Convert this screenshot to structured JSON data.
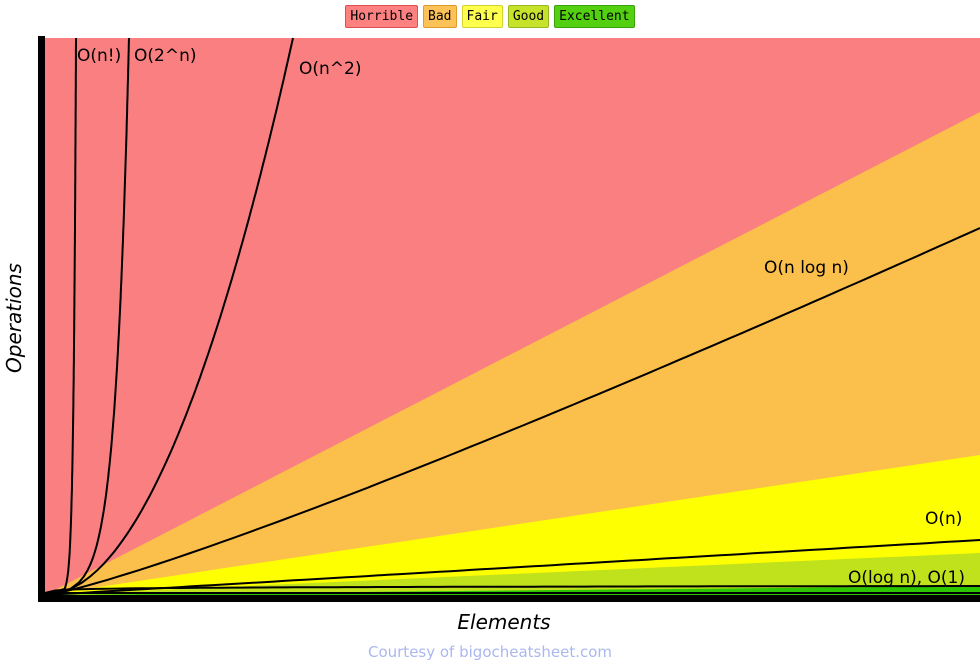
{
  "legend": {
    "items": [
      {
        "label": "Horrible",
        "bg": "#fd8181",
        "border": "#e04f4f"
      },
      {
        "label": "Bad",
        "bg": "#fcc258",
        "border": "#e09b2d"
      },
      {
        "label": "Fair",
        "bg": "#ffff4d",
        "border": "#d3d32e"
      },
      {
        "label": "Good",
        "bg": "#c6e22b",
        "border": "#99b821"
      },
      {
        "label": "Excellent",
        "bg": "#53d010",
        "border": "#3ba00d"
      }
    ]
  },
  "axes": {
    "x_label": "Elements",
    "y_label": "Operations"
  },
  "caption": {
    "text": "Courtesy of bigocheatsheet.com",
    "color": "#abb7ef"
  },
  "chart_data": {
    "type": "line",
    "xlabel": "Elements",
    "ylabel": "Operations",
    "x_ticks": [],
    "y_ticks": [],
    "grid": false,
    "legend_position": "top-center",
    "legend_entries": [
      "Horrible",
      "Bad",
      "Fair",
      "Good",
      "Excellent"
    ],
    "curve_color": "#000000",
    "zones": [
      {
        "name": "Horrible",
        "color": "#f97f81"
      },
      {
        "name": "Bad",
        "color": "#fbbf4c"
      },
      {
        "name": "Fair",
        "color": "#feff00"
      },
      {
        "name": "Good",
        "color": "#bfe21d"
      },
      {
        "name": "Excellent",
        "color": "#2cc500"
      }
    ],
    "series": [
      {
        "id": "factorial",
        "formula": "n!",
        "label": "O(n!)"
      },
      {
        "id": "exponential",
        "formula": "2^n",
        "label": "O(2^n)"
      },
      {
        "id": "quadratic",
        "formula": "n^2",
        "label": "O(n^2)"
      },
      {
        "id": "nlogn",
        "formula": "n log n",
        "label": "O(n log n)"
      },
      {
        "id": "linear",
        "formula": "n",
        "label": "O(n)"
      },
      {
        "id": "logarithmic",
        "formula": "log n",
        "label": "O(log n)"
      },
      {
        "id": "constant",
        "formula": "1",
        "label": "O(1)"
      }
    ],
    "annotations": [
      {
        "id": "factorial",
        "text": "O(n!)"
      },
      {
        "id": "exponential",
        "text": "O(2^n)"
      },
      {
        "id": "quadratic",
        "text": "O(n^2)"
      },
      {
        "id": "nlogn",
        "text": "O(n log n)"
      },
      {
        "id": "linear",
        "text": "O(n)"
      },
      {
        "id": "log-const",
        "text": "O(log n), O(1)"
      }
    ]
  }
}
